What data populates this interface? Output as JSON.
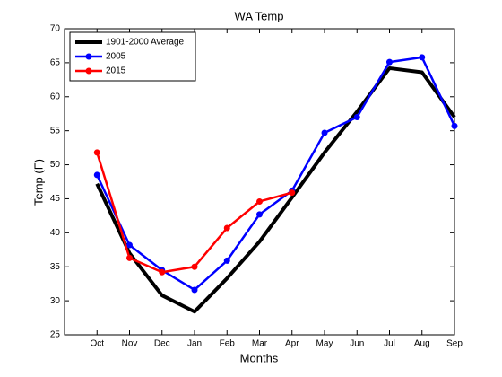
{
  "chart_data": {
    "type": "line",
    "title": "WA Temp",
    "x_label": "Months",
    "y_label": "Temp (F)",
    "categories": [
      "Oct",
      "Nov",
      "Dec",
      "Jan",
      "Feb",
      "Mar",
      "Apr",
      "May",
      "Jun",
      "Jul",
      "Aug",
      "Sep"
    ],
    "series": [
      {
        "name": "1901-2000 Average",
        "color": "#000000",
        "markers": false,
        "values": [
          47.2,
          37.0,
          30.8,
          28.4,
          33.3,
          38.7,
          45.2,
          51.8,
          57.8,
          64.2,
          63.6,
          57.0
        ]
      },
      {
        "name": "2005",
        "color": "#0000ff",
        "markers": true,
        "values": [
          48.5,
          38.2,
          34.5,
          31.6,
          35.9,
          42.7,
          46.2,
          54.7,
          57.0,
          65.1,
          65.8,
          55.7
        ]
      },
      {
        "name": "2015",
        "color": "#ff0000",
        "markers": true,
        "values": [
          51.8,
          36.3,
          34.2,
          35.0,
          40.7,
          44.6,
          45.9,
          null,
          null,
          null,
          null,
          null
        ]
      }
    ],
    "ylim": [
      25,
      70
    ],
    "yticks": [
      25,
      30,
      35,
      40,
      45,
      50,
      55,
      60,
      65,
      70
    ],
    "legend": "upper left",
    "grid": false
  }
}
